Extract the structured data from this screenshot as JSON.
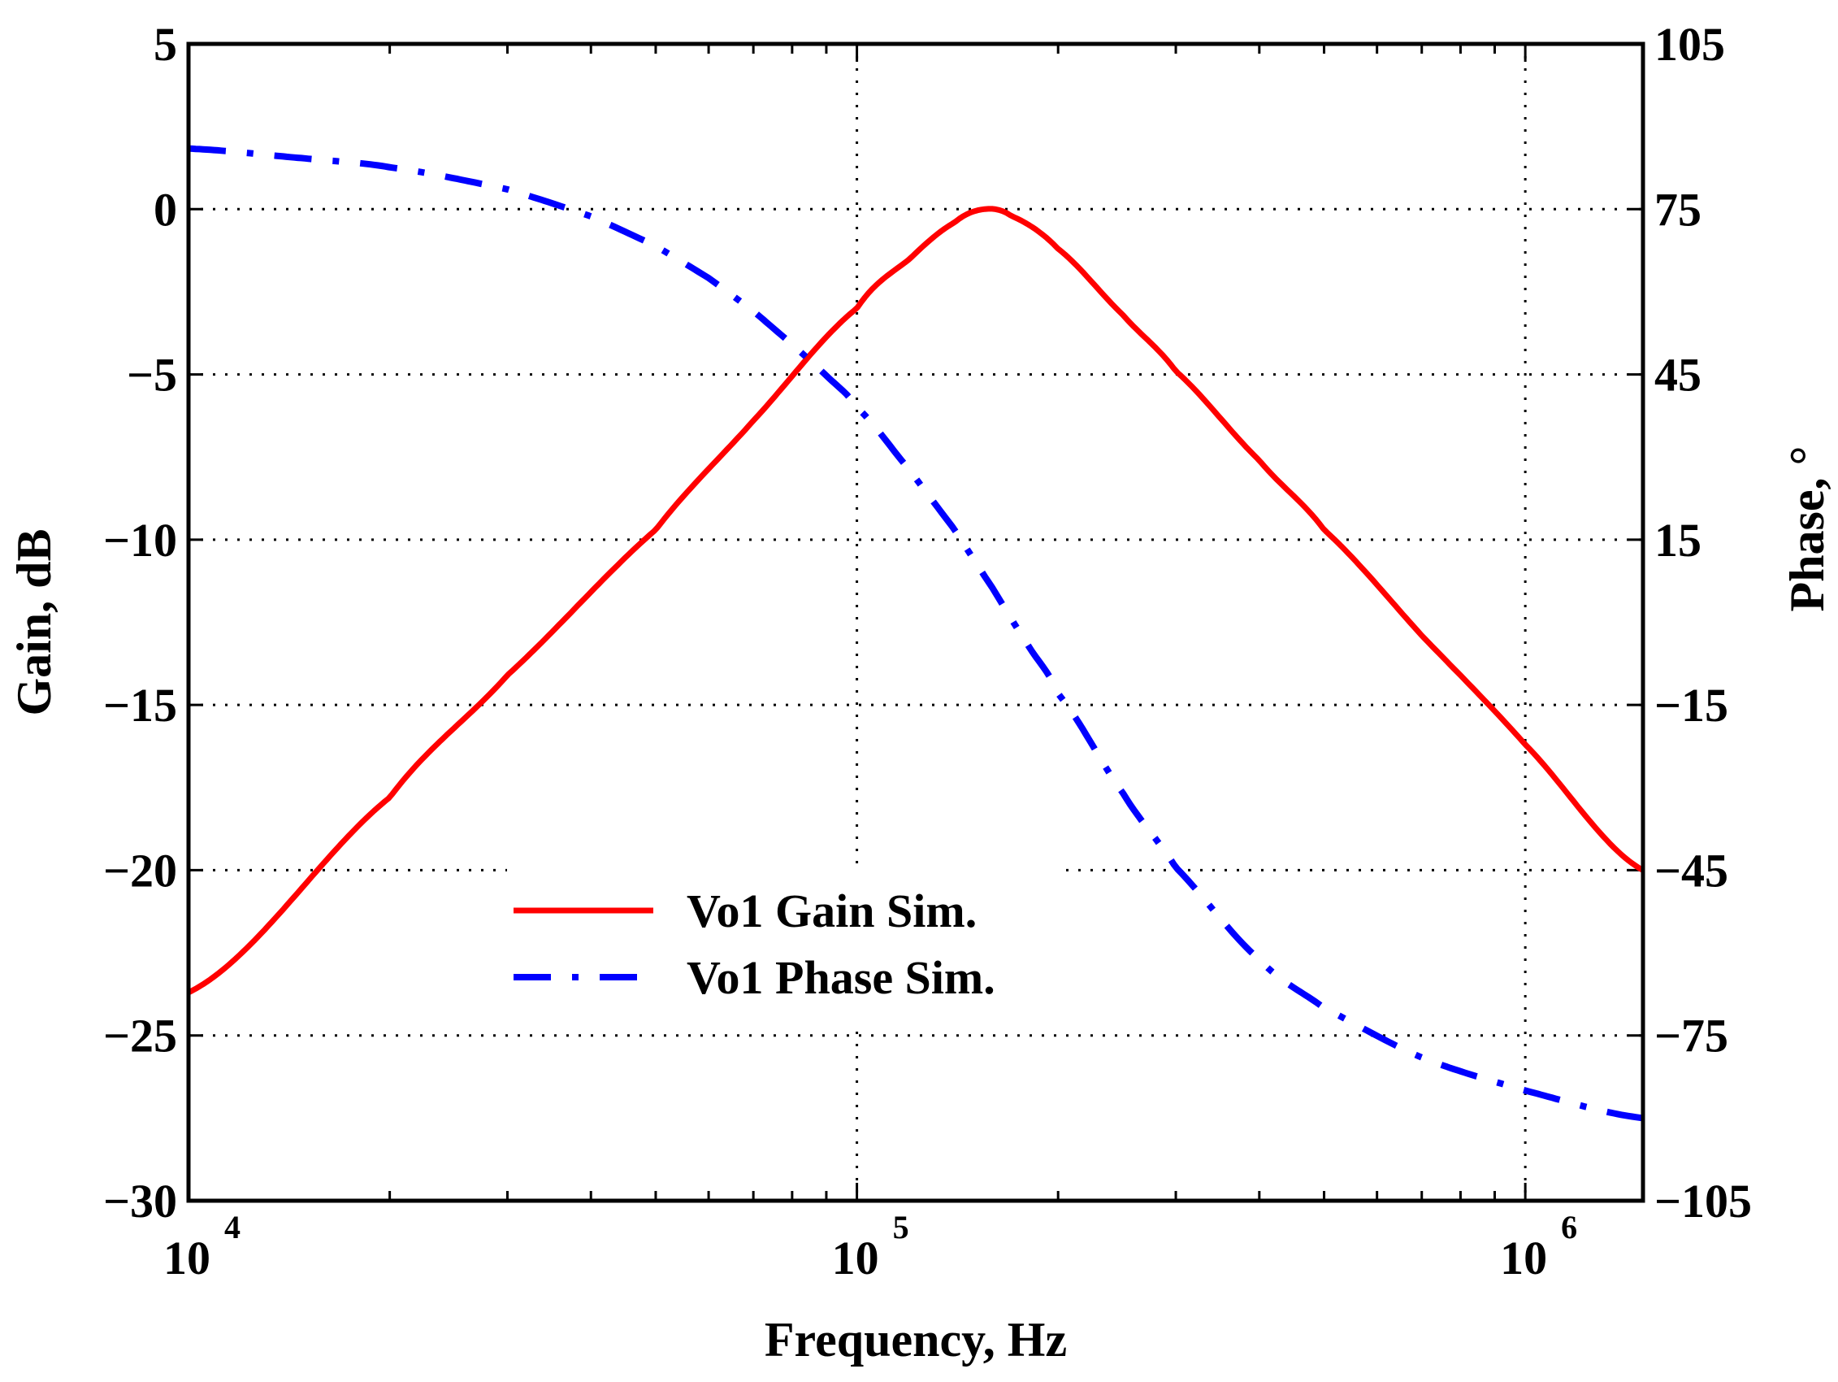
{
  "chart_data": {
    "type": "line",
    "title": "",
    "xlabel": "Frequency, Hz",
    "ylabel_left": "Gain, dB",
    "ylabel_right": "Phase, °",
    "xscale": "log",
    "xlim": [
      10000,
      1500000
    ],
    "ylim_left": [
      -30,
      5
    ],
    "ylim_right": [
      -105,
      105
    ],
    "grid": true,
    "legend_location": "lower-left-center",
    "x_ticks": [
      {
        "base": "10",
        "exp": "4",
        "value": 10000
      },
      {
        "base": "10",
        "exp": "5",
        "value": 100000
      },
      {
        "base": "10",
        "exp": "6",
        "value": 1000000
      }
    ],
    "y_left_ticks": [
      {
        "label": "5",
        "value": 5
      },
      {
        "label": "0",
        "value": 0
      },
      {
        "label": "−5",
        "value": -5
      },
      {
        "label": "−10",
        "value": -10
      },
      {
        "label": "−15",
        "value": -15
      },
      {
        "label": "−20",
        "value": -20
      },
      {
        "label": "−25",
        "value": -25
      },
      {
        "label": "−30",
        "value": -30
      }
    ],
    "y_right_ticks": [
      {
        "label": "105",
        "value": 105
      },
      {
        "label": "75",
        "value": 75
      },
      {
        "label": "45",
        "value": 45
      },
      {
        "label": "15",
        "value": 15
      },
      {
        "label": "−15",
        "value": -15
      },
      {
        "label": "−45",
        "value": -45
      },
      {
        "label": "−75",
        "value": -75
      },
      {
        "label": "−105",
        "value": -105
      }
    ],
    "series": [
      {
        "name": "Vo1 Gain Sim.",
        "axis": "left",
        "color": "#ff0000",
        "style": "solid",
        "x": [
          10000,
          20000,
          30000,
          50000,
          70000,
          100000,
          120000,
          140000,
          155000,
          170000,
          200000,
          250000,
          300000,
          400000,
          500000,
          700000,
          1000000,
          1500000
        ],
        "y": [
          -23.7,
          -17.8,
          -14.1,
          -9.7,
          -6.4,
          -3.0,
          -1.5,
          -0.4,
          0.0,
          -0.2,
          -1.2,
          -3.2,
          -4.9,
          -7.6,
          -9.7,
          -12.9,
          -16.2,
          -20.0
        ]
      },
      {
        "name": "Vo1 Phase Sim.",
        "axis": "right",
        "color": "#0000ff",
        "style": "dashdot",
        "x": [
          10000,
          15000,
          20000,
          30000,
          40000,
          50000,
          60000,
          70000,
          80000,
          90000,
          100000,
          120000,
          140000,
          160000,
          180000,
          200000,
          250000,
          300000,
          400000,
          500000,
          700000,
          1000000,
          1500000
        ],
        "y": [
          86.0,
          84.2,
          82.6,
          78.6,
          73.7,
          68.3,
          62.5,
          56.5,
          50.5,
          44.8,
          39.0,
          27.6,
          16.8,
          6.0,
          -4.0,
          -13.0,
          -31.0,
          -44.5,
          -61.2,
          -70.0,
          -79.0,
          -85.0,
          -90.0
        ]
      }
    ]
  }
}
